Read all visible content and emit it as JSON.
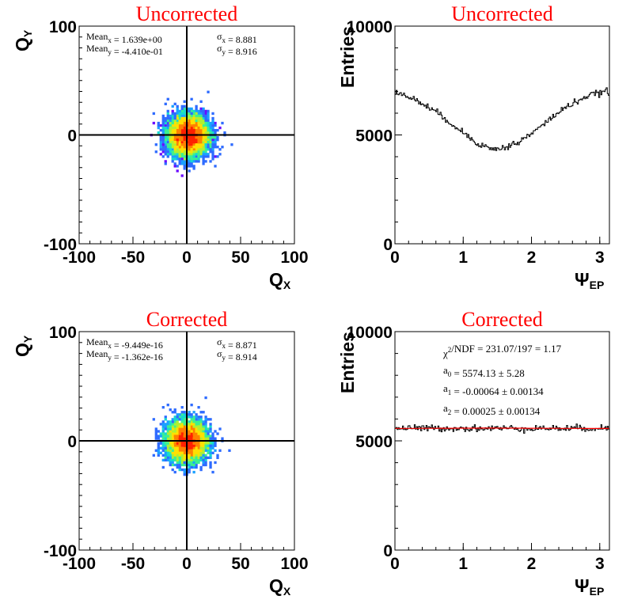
{
  "chart_data": [
    {
      "type": "heatmap",
      "title": "Uncorrected",
      "xlabel": "Q",
      "xlabel_sub": "X",
      "ylabel": "Q",
      "ylabel_sub": "Y",
      "xlim": [
        -100,
        100
      ],
      "ylim": [
        -100,
        100
      ],
      "xticks": [
        "-100",
        "-50",
        "0",
        "50",
        "100"
      ],
      "yticks": [
        "-100",
        "0",
        "100"
      ],
      "center": [
        1.639,
        -0.441
      ],
      "sigma": [
        8.881,
        8.916
      ],
      "stats": [
        {
          "lab": "Mean",
          "sub": "x",
          "val": " = 1.639e+00",
          "s_lab": "σ",
          "s_sub": "x",
          "s_val": " = 8.881"
        },
        {
          "lab": "Mean",
          "sub": "y",
          "val": " = -4.410e-01",
          "s_lab": "σ",
          "s_sub": "y",
          "s_val": " = 8.916"
        }
      ],
      "colors": [
        "#8000ff",
        "#6a0aff",
        "#4a3aff",
        "#2e6bff",
        "#1aa0ff",
        "#16d9d0",
        "#3cf090",
        "#b0f030",
        "#ffe000",
        "#ff8000",
        "#ff2000"
      ]
    },
    {
      "type": "line",
      "title": "Uncorrected",
      "xlabel": "Ψ",
      "xlabel_sub": "EP",
      "ylabel": "Entries",
      "xlim": [
        0,
        3.1416
      ],
      "ylim": [
        0,
        10000
      ],
      "xticks": [
        "0",
        "1",
        "2",
        "3"
      ],
      "yticks": [
        "0",
        "5000",
        "10000"
      ],
      "series": [
        {
          "x": [
            0,
            0.2,
            0.4,
            0.6,
            0.8,
            1.0,
            1.2,
            1.4,
            1.6,
            1.8,
            2.0,
            2.2,
            2.4,
            2.6,
            2.8,
            3.0,
            3.14
          ],
          "values": [
            6950,
            6750,
            6450,
            6050,
            5600,
            5100,
            4650,
            4350,
            4400,
            4650,
            5050,
            5550,
            6050,
            6450,
            6750,
            6950,
            7000
          ]
        }
      ]
    },
    {
      "type": "heatmap",
      "title": "Corrected",
      "xlabel": "Q",
      "xlabel_sub": "X",
      "ylabel": "Q",
      "ylabel_sub": "Y",
      "xlim": [
        -100,
        100
      ],
      "ylim": [
        -100,
        100
      ],
      "xticks": [
        "-100",
        "-50",
        "0",
        "50",
        "100"
      ],
      "yticks": [
        "-100",
        "0",
        "100"
      ],
      "center": [
        0,
        0
      ],
      "sigma": [
        8.871,
        8.914
      ],
      "stats": [
        {
          "lab": "Mean",
          "sub": "x",
          "val": " = -9.449e-16",
          "s_lab": "σ",
          "s_sub": "x",
          "s_val": " = 8.871"
        },
        {
          "lab": "Mean",
          "sub": "y",
          "val": " = -1.362e-16",
          "s_lab": "σ",
          "s_sub": "y",
          "s_val": " = 8.914"
        }
      ],
      "colors": [
        "#8000ff",
        "#6a0aff",
        "#4a3aff",
        "#2e6bff",
        "#1aa0ff",
        "#16d9d0",
        "#3cf090",
        "#b0f030",
        "#ffe000",
        "#ff8000",
        "#ff2000"
      ]
    },
    {
      "type": "line",
      "title": "Corrected",
      "xlabel": "Ψ",
      "xlabel_sub": "EP",
      "ylabel": "Entries",
      "xlim": [
        0,
        3.1416
      ],
      "ylim": [
        0,
        10000
      ],
      "xticks": [
        "0",
        "1",
        "2",
        "3"
      ],
      "yticks": [
        "0",
        "5000",
        "10000"
      ],
      "series": [
        {
          "x": [
            0,
            0.5,
            1.0,
            1.5,
            2.0,
            2.5,
            3.0,
            3.14
          ],
          "values": [
            5574,
            5580,
            5570,
            5575,
            5578,
            5572,
            5576,
            5574
          ]
        }
      ],
      "fit": {
        "a0": 5574.13,
        "a1": -0.00064,
        "a2": 0.00025,
        "color": "#ff0000",
        "lines": [
          {
            "lab": "χ",
            "sup": "2",
            "rest": "/NDF",
            "val": "   = 231.07/197  =  1.17"
          },
          {
            "lab": "a",
            "sub": "0",
            "val": "    = 5574.13 ± 5.28"
          },
          {
            "lab": "a",
            "sub": "1",
            "val": "    = -0.00064 ± 0.00134"
          },
          {
            "lab": "a",
            "sub": "2",
            "val": "    = 0.00025 ± 0.00134"
          }
        ]
      }
    }
  ]
}
